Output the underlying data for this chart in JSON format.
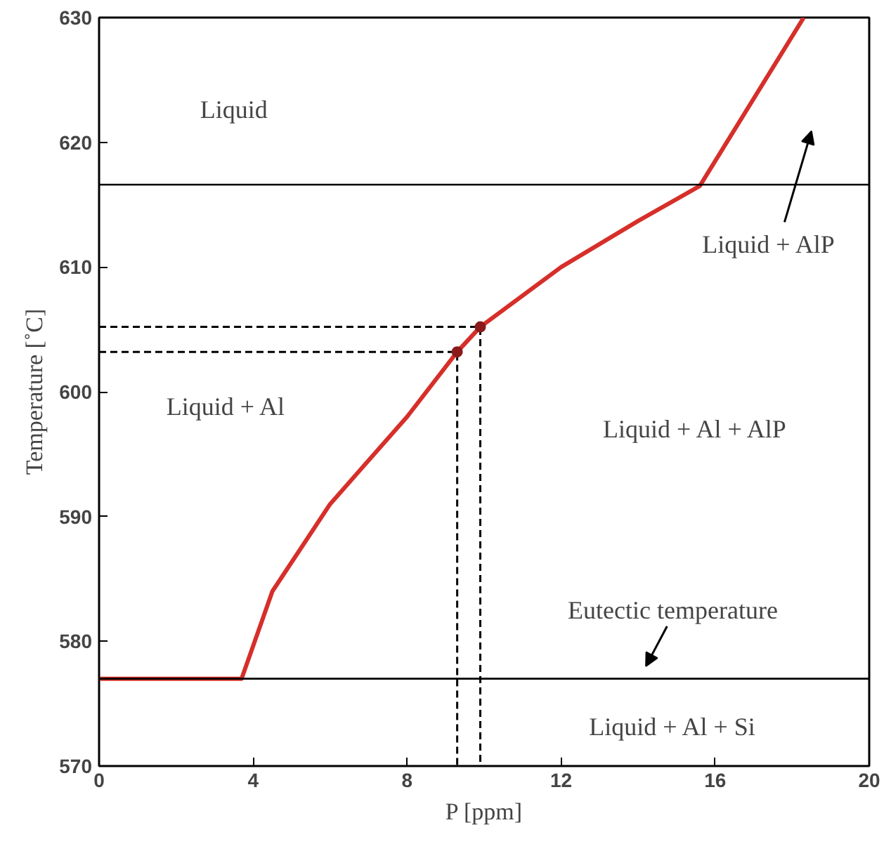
{
  "chart_data": {
    "type": "line",
    "xlabel": "P [ppm]",
    "ylabel": "Temperature [˚C]",
    "xlim": [
      0,
      20
    ],
    "ylim": [
      570,
      630
    ],
    "xticks": [
      0,
      4,
      8,
      12,
      16,
      20
    ],
    "yticks": [
      570,
      580,
      590,
      600,
      610,
      620,
      630
    ],
    "grid": false,
    "series": [
      {
        "color": "#d62f2a",
        "line_style": "solid",
        "x": [
          0,
          3.7,
          4.5,
          6,
          8,
          9.3,
          9.9,
          12,
          14,
          15.6,
          18.3
        ],
        "values": [
          577,
          577,
          584,
          591,
          598,
          603.2,
          605.2,
          610,
          613.7,
          616.5,
          630
        ]
      },
      {
        "color": "#000000",
        "line_style": "dashed",
        "x": [
          0,
          9.3,
          9.3
        ],
        "values": [
          603.2,
          603.2,
          570
        ]
      },
      {
        "color": "#000000",
        "line_style": "dashed",
        "x": [
          0,
          9.9,
          9.9
        ],
        "values": [
          605.2,
          605.2,
          570
        ]
      },
      {
        "type": "scatter",
        "color": "#8b1a1a",
        "marker": "circle",
        "x": [
          9.3,
          9.9
        ],
        "values": [
          603.2,
          605.2
        ]
      }
    ],
    "ref_lines": [
      {
        "axis": "y",
        "value": 616.6,
        "color": "#000000"
      },
      {
        "axis": "y",
        "value": 577,
        "color": "#000000"
      }
    ],
    "annotations": [
      "Liquid",
      "Liquid + AlP",
      "Liquid + Al",
      "Liquid + Al + AlP",
      "Eutectic temperature",
      "Liquid + Al + Si"
    ]
  }
}
